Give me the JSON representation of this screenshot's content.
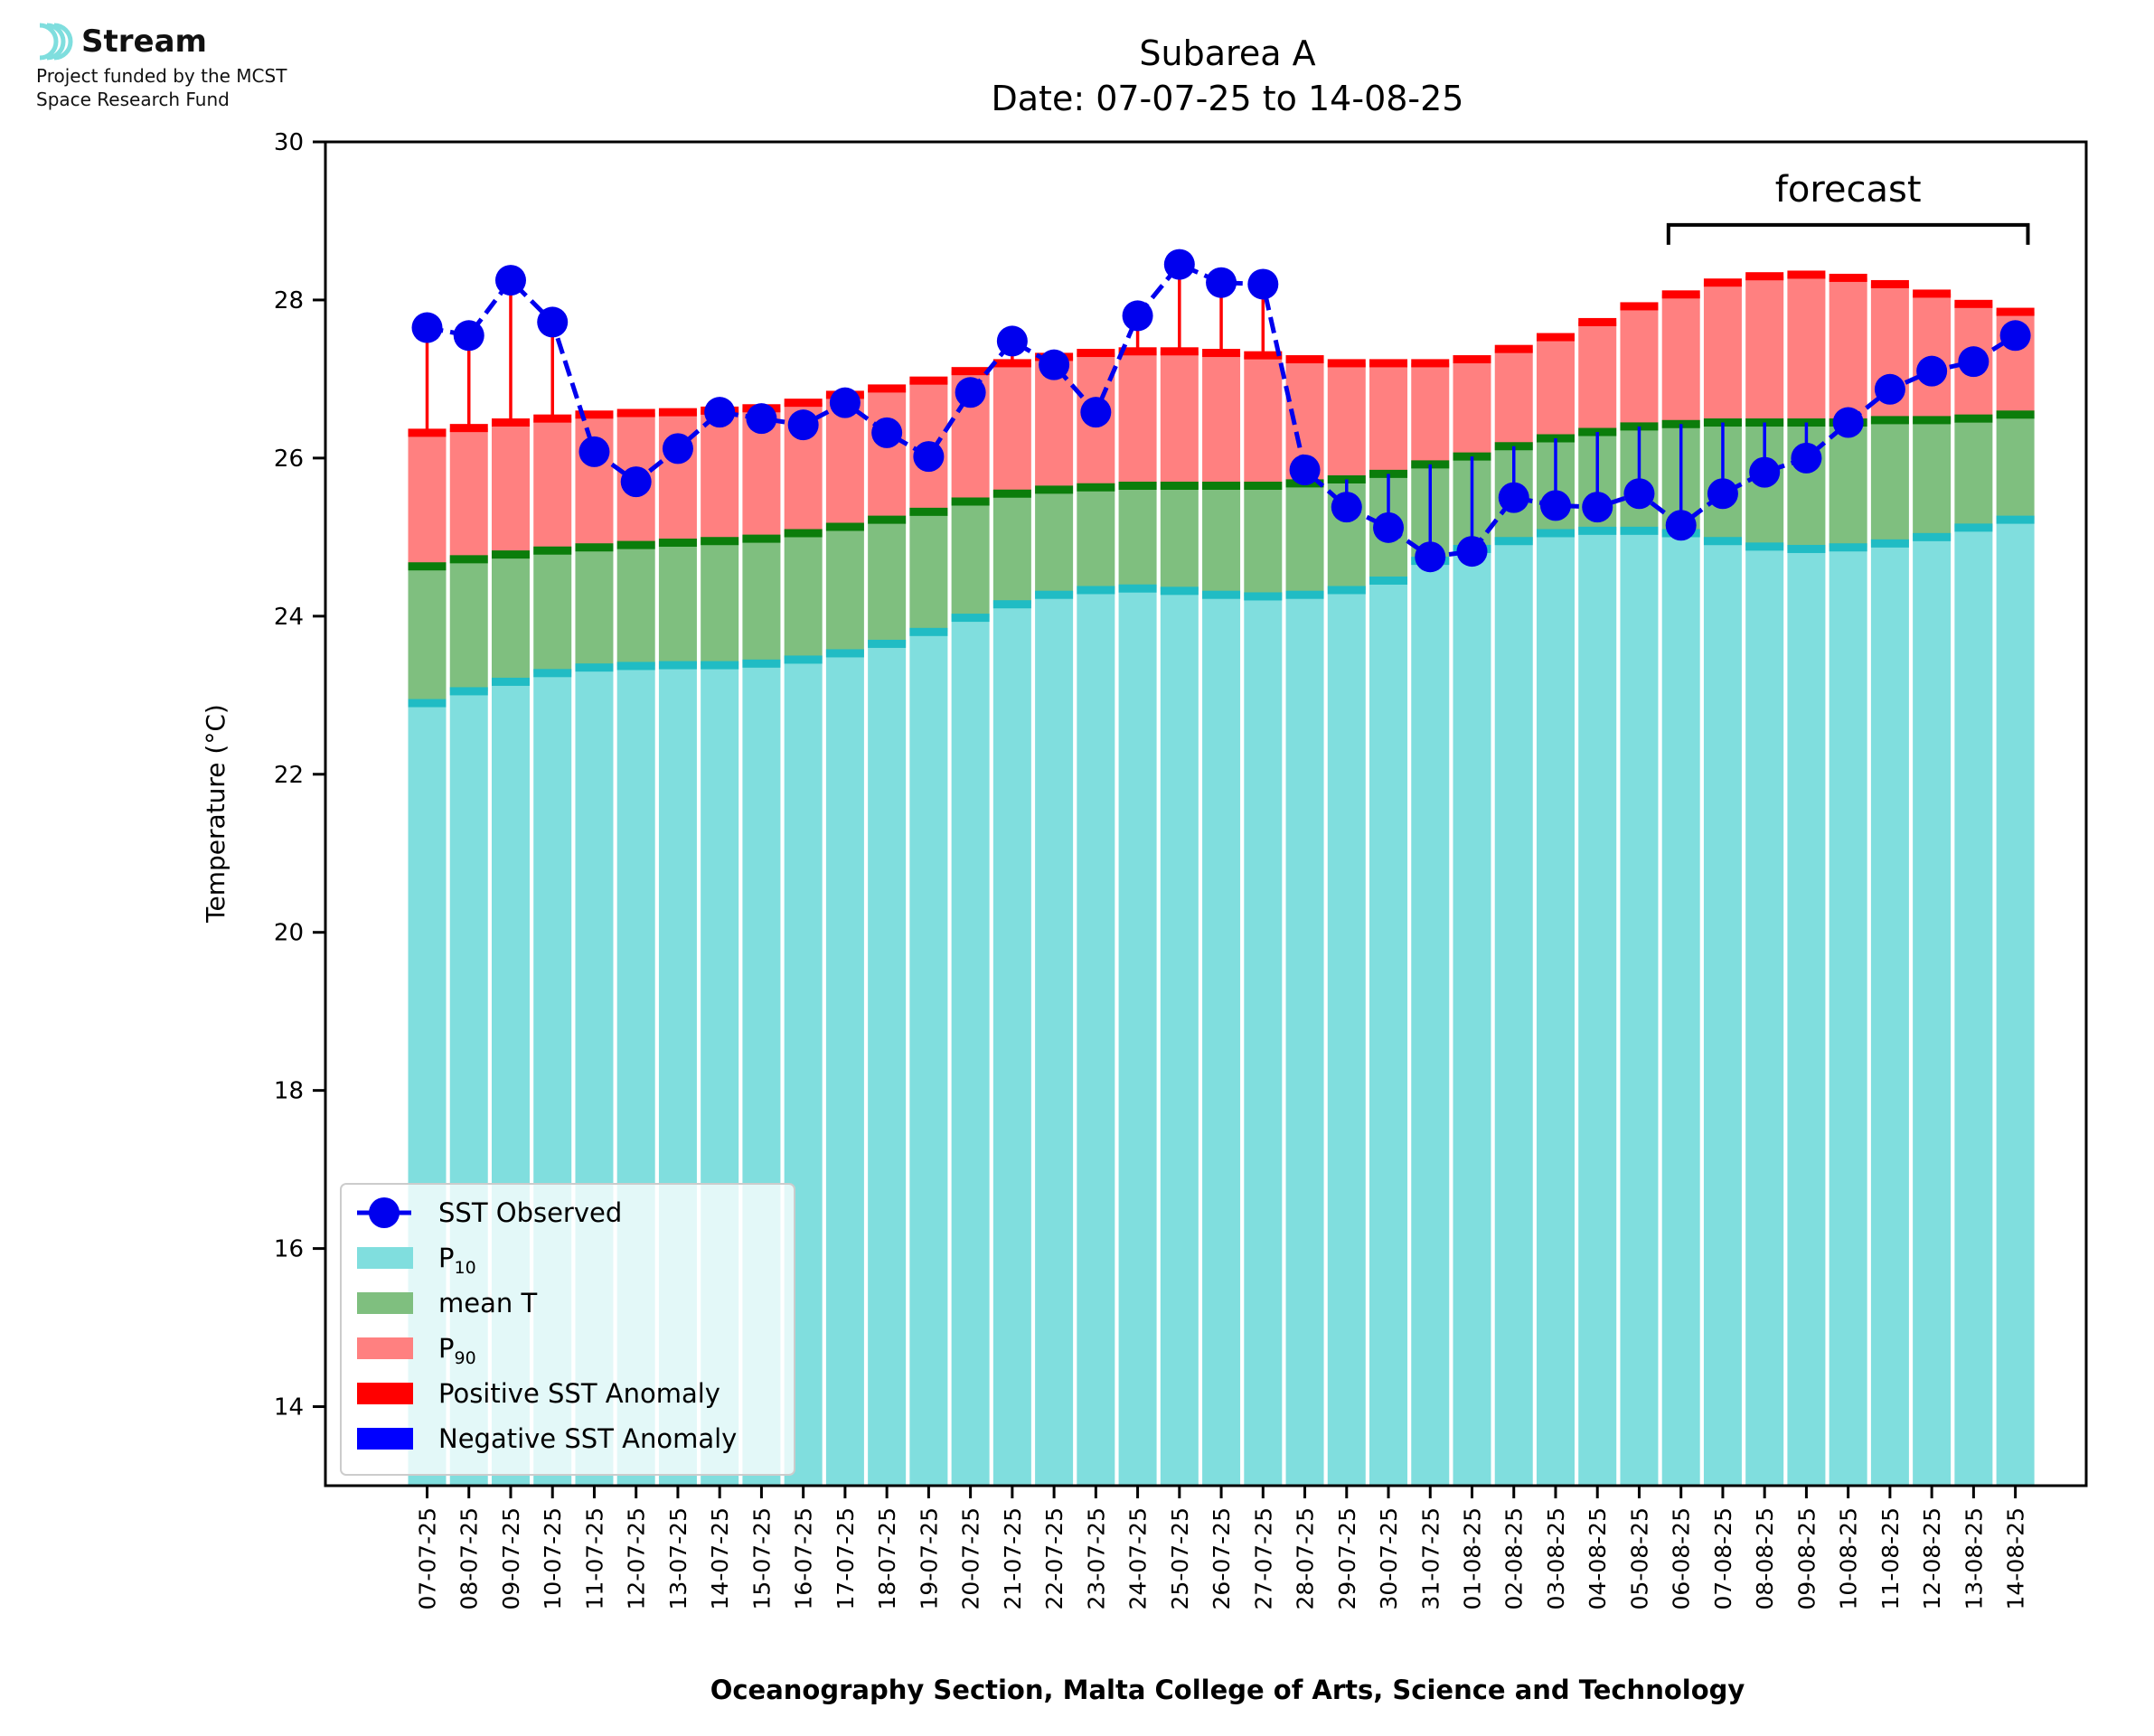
{
  "logo": {
    "name": "Stream",
    "line1": "Project funded by the MCST",
    "line2": "Space Research Fund"
  },
  "chart_data": {
    "type": "bar",
    "title": "Subarea A",
    "subtitle": "Date: 07-07-25 to 14-08-25",
    "xlabel": "Oceanography Section, Malta College of Arts, Science and Technology",
    "ylabel": "Temperature (°C)",
    "ylim": [
      13,
      30
    ],
    "yticks": [
      14,
      16,
      18,
      20,
      22,
      24,
      26,
      28,
      30
    ],
    "grid": false,
    "legend_position": "bottom-left",
    "annotation": {
      "text": "forecast",
      "from": "06-08-25",
      "to": "14-08-25"
    },
    "categories": [
      "07-07-25",
      "08-07-25",
      "09-07-25",
      "10-07-25",
      "11-07-25",
      "12-07-25",
      "13-07-25",
      "14-07-25",
      "15-07-25",
      "16-07-25",
      "17-07-25",
      "18-07-25",
      "19-07-25",
      "20-07-25",
      "21-07-25",
      "22-07-25",
      "23-07-25",
      "24-07-25",
      "25-07-25",
      "26-07-25",
      "27-07-25",
      "28-07-25",
      "29-07-25",
      "30-07-25",
      "31-07-25",
      "01-08-25",
      "02-08-25",
      "03-08-25",
      "04-08-25",
      "05-08-25",
      "06-08-25",
      "07-08-25",
      "08-08-25",
      "09-08-25",
      "10-08-25",
      "11-08-25",
      "12-08-25",
      "13-08-25",
      "14-08-25"
    ],
    "series": [
      {
        "name": "SST Observed",
        "color": "#0000ee",
        "values": [
          27.65,
          27.55,
          28.25,
          27.72,
          26.08,
          25.7,
          26.12,
          26.58,
          26.5,
          26.42,
          26.7,
          26.32,
          26.02,
          26.83,
          27.48,
          27.18,
          26.58,
          27.8,
          28.45,
          28.22,
          28.2,
          25.85,
          25.38,
          25.12,
          24.75,
          24.82,
          25.5,
          25.4,
          25.38,
          25.55,
          25.15,
          25.55,
          25.82,
          26.0,
          26.45,
          26.87,
          27.1,
          27.22,
          27.55
        ]
      },
      {
        "name": "P10",
        "color": "#80dede",
        "values": [
          22.9,
          23.05,
          23.17,
          23.28,
          23.35,
          23.37,
          23.38,
          23.38,
          23.4,
          23.45,
          23.53,
          23.65,
          23.8,
          23.98,
          24.15,
          24.27,
          24.33,
          24.35,
          24.32,
          24.27,
          24.25,
          24.27,
          24.33,
          24.45,
          24.7,
          24.85,
          24.95,
          25.05,
          25.08,
          25.08,
          25.05,
          24.95,
          24.88,
          24.85,
          24.87,
          24.92,
          25.0,
          25.12,
          25.22
        ]
      },
      {
        "name": "mean T",
        "color": "#7fbf7f",
        "values": [
          24.63,
          24.72,
          24.78,
          24.83,
          24.87,
          24.9,
          24.93,
          24.95,
          24.98,
          25.05,
          25.13,
          25.22,
          25.32,
          25.45,
          25.55,
          25.6,
          25.63,
          25.65,
          25.65,
          25.65,
          25.65,
          25.68,
          25.73,
          25.8,
          25.92,
          26.02,
          26.15,
          26.25,
          26.33,
          26.4,
          26.43,
          26.45,
          26.45,
          26.45,
          26.45,
          26.48,
          26.48,
          26.5,
          26.55
        ]
      },
      {
        "name": "P90",
        "color": "#ff8080",
        "values": [
          26.32,
          26.38,
          26.45,
          26.5,
          26.55,
          26.57,
          26.58,
          26.6,
          26.63,
          26.7,
          26.8,
          26.88,
          26.98,
          27.1,
          27.2,
          27.28,
          27.33,
          27.35,
          27.35,
          27.33,
          27.3,
          27.25,
          27.2,
          27.2,
          27.2,
          27.25,
          27.38,
          27.53,
          27.72,
          27.92,
          28.07,
          28.22,
          28.3,
          28.32,
          28.28,
          28.2,
          28.08,
          27.95,
          27.85
        ]
      }
    ],
    "anomaly_legend": [
      {
        "name": "Positive SST Anomaly",
        "color": "#ff0000"
      },
      {
        "name": "Negative SST Anomaly",
        "color": "#0000ff"
      }
    ]
  }
}
